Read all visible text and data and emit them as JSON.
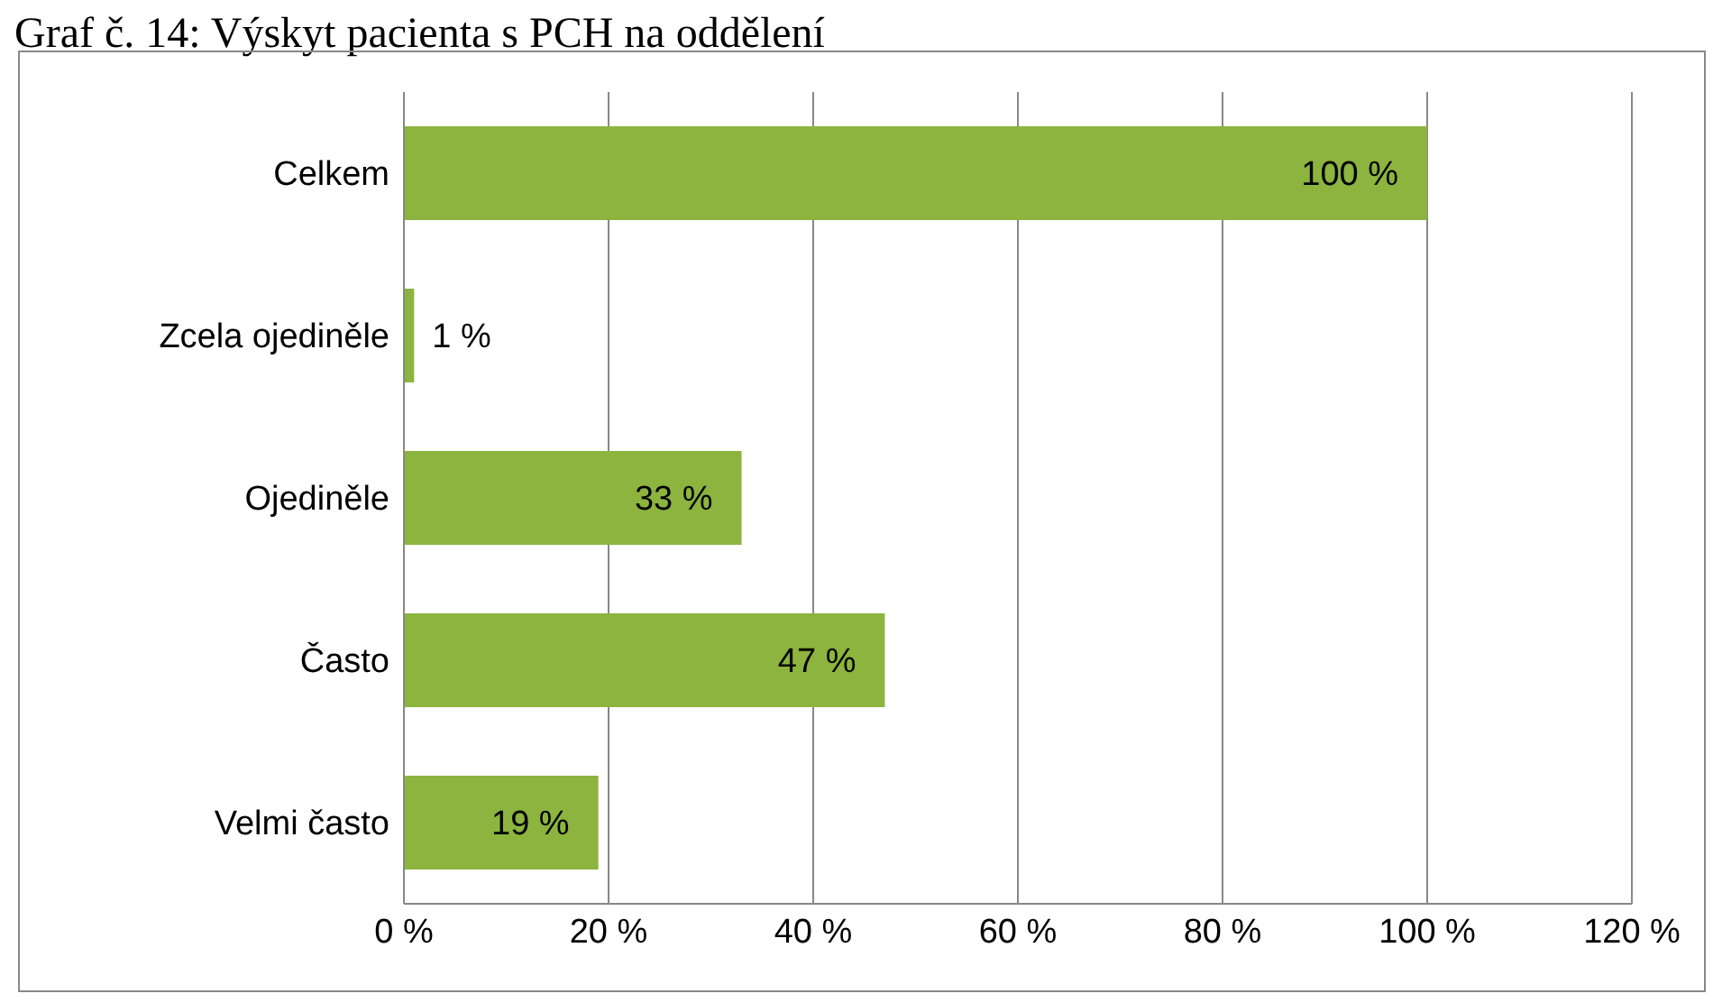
{
  "chart_data": {
    "type": "bar",
    "orientation": "horizontal",
    "title": "Graf č. 14: Výskyt pacienta s PCH na oddělení",
    "categories": [
      "Celkem",
      "Zcela ojediněle",
      "Ojediněle",
      "Často",
      "Velmi často"
    ],
    "values": [
      100,
      1,
      33,
      47,
      19
    ],
    "value_labels": [
      "100 %",
      "1 %",
      "33 %",
      "47 %",
      "19 %"
    ],
    "color": "#8cb43e",
    "xlim": [
      0,
      120
    ],
    "xticks": [
      {
        "value": 0,
        "label": "0 %"
      },
      {
        "value": 20,
        "label": "20 %"
      },
      {
        "value": 40,
        "label": "40 %"
      },
      {
        "value": 60,
        "label": "60 %"
      },
      {
        "value": 80,
        "label": "80 %"
      },
      {
        "value": 100,
        "label": "100 %"
      },
      {
        "value": 120,
        "label": "120 %"
      }
    ],
    "grid": "x"
  }
}
